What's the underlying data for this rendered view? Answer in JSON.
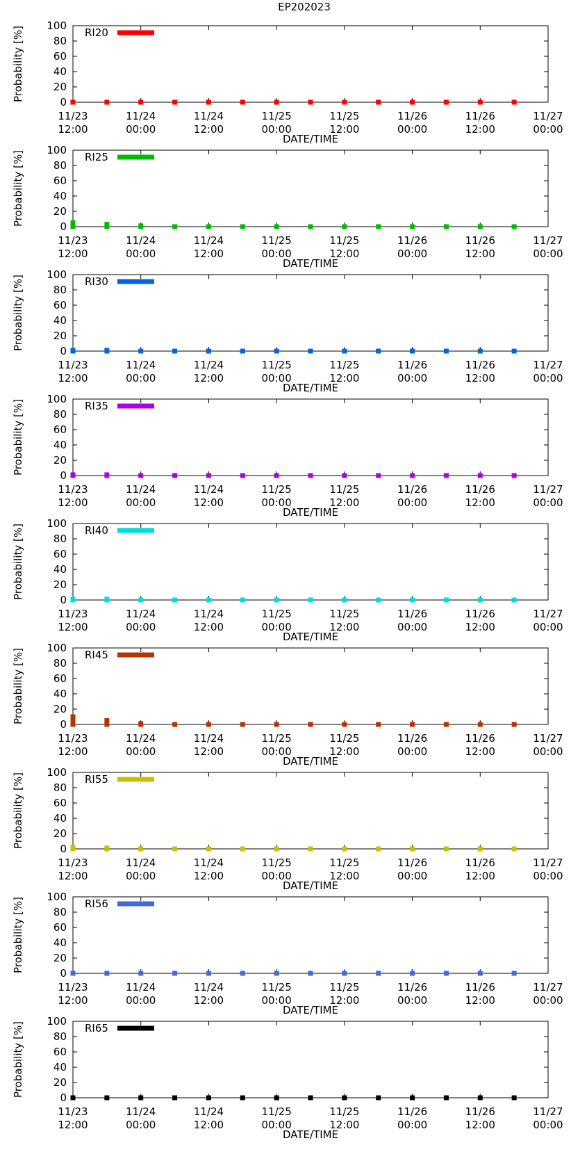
{
  "title": "EP202023",
  "chart_data": [
    {
      "type": "scatter",
      "title": "EP202023",
      "legend": "RI20",
      "color": "#ff0000",
      "xlabel": "DATE/TIME",
      "ylabel": "Probability [%]",
      "ylim": [
        0,
        100
      ],
      "yticks": [
        0,
        20,
        40,
        60,
        80,
        100
      ],
      "xticks": [
        [
          "11/23",
          "12:00"
        ],
        [
          "11/24",
          "00:00"
        ],
        [
          "11/24",
          "12:00"
        ],
        [
          "11/25",
          "00:00"
        ],
        [
          "11/25",
          "12:00"
        ],
        [
          "11/26",
          "00:00"
        ],
        [
          "11/26",
          "12:00"
        ],
        [
          "11/27",
          "00:00"
        ]
      ],
      "x_hours": [
        0,
        6,
        12,
        18,
        24,
        30,
        36,
        42,
        48,
        54,
        60,
        66,
        72,
        78
      ],
      "xlim_hours": [
        0,
        84
      ],
      "values": [
        0,
        0,
        0,
        0,
        0,
        0,
        0,
        0,
        0,
        0,
        0,
        0,
        0,
        0
      ]
    },
    {
      "type": "scatter",
      "legend": "RI25",
      "color": "#00bb00",
      "xlabel": "DATE/TIME",
      "ylabel": "Probability [%]",
      "ylim": [
        0,
        100
      ],
      "yticks": [
        0,
        20,
        40,
        60,
        80,
        100
      ],
      "xticks": [
        [
          "11/23",
          "12:00"
        ],
        [
          "11/24",
          "00:00"
        ],
        [
          "11/24",
          "12:00"
        ],
        [
          "11/25",
          "00:00"
        ],
        [
          "11/25",
          "12:00"
        ],
        [
          "11/26",
          "00:00"
        ],
        [
          "11/26",
          "12:00"
        ],
        [
          "11/27",
          "00:00"
        ]
      ],
      "x_hours": [
        0,
        6,
        12,
        18,
        24,
        30,
        36,
        42,
        48,
        54,
        60,
        66,
        72,
        78
      ],
      "xlim_hours": [
        0,
        84
      ],
      "values": [
        5,
        3,
        1,
        0,
        0,
        0,
        0,
        0,
        0,
        0,
        0,
        0,
        0,
        0
      ]
    },
    {
      "type": "scatter",
      "legend": "RI30",
      "color": "#0066dd",
      "xlabel": "DATE/TIME",
      "ylabel": "Probability [%]",
      "ylim": [
        0,
        100
      ],
      "yticks": [
        0,
        20,
        40,
        60,
        80,
        100
      ],
      "xticks": [
        [
          "11/23",
          "12:00"
        ],
        [
          "11/24",
          "00:00"
        ],
        [
          "11/24",
          "12:00"
        ],
        [
          "11/25",
          "00:00"
        ],
        [
          "11/25",
          "12:00"
        ],
        [
          "11/26",
          "00:00"
        ],
        [
          "11/26",
          "12:00"
        ],
        [
          "11/27",
          "00:00"
        ]
      ],
      "x_hours": [
        0,
        6,
        12,
        18,
        24,
        30,
        36,
        42,
        48,
        54,
        60,
        66,
        72,
        78
      ],
      "xlim_hours": [
        0,
        84
      ],
      "values": [
        1,
        1,
        0,
        0,
        0,
        0,
        0,
        0,
        0,
        0,
        0,
        0,
        0,
        0
      ]
    },
    {
      "type": "scatter",
      "legend": "RI35",
      "color": "#aa00ee",
      "xlabel": "DATE/TIME",
      "ylabel": "Probability [%]",
      "ylim": [
        0,
        100
      ],
      "yticks": [
        0,
        20,
        40,
        60,
        80,
        100
      ],
      "xticks": [
        [
          "11/23",
          "12:00"
        ],
        [
          "11/24",
          "00:00"
        ],
        [
          "11/24",
          "12:00"
        ],
        [
          "11/25",
          "00:00"
        ],
        [
          "11/25",
          "12:00"
        ],
        [
          "11/26",
          "00:00"
        ],
        [
          "11/26",
          "12:00"
        ],
        [
          "11/27",
          "00:00"
        ]
      ],
      "x_hours": [
        0,
        6,
        12,
        18,
        24,
        30,
        36,
        42,
        48,
        54,
        60,
        66,
        72,
        78
      ],
      "xlim_hours": [
        0,
        84
      ],
      "values": [
        1,
        1,
        0,
        0,
        0,
        0,
        0,
        0,
        0,
        0,
        0,
        0,
        0,
        0
      ]
    },
    {
      "type": "scatter",
      "legend": "RI40",
      "color": "#00dddd",
      "xlabel": "DATE/TIME",
      "ylabel": "Probability [%]",
      "ylim": [
        0,
        100
      ],
      "yticks": [
        0,
        20,
        40,
        60,
        80,
        100
      ],
      "xticks": [
        [
          "11/23",
          "12:00"
        ],
        [
          "11/24",
          "00:00"
        ],
        [
          "11/24",
          "12:00"
        ],
        [
          "11/25",
          "00:00"
        ],
        [
          "11/25",
          "12:00"
        ],
        [
          "11/26",
          "00:00"
        ],
        [
          "11/26",
          "12:00"
        ],
        [
          "11/27",
          "00:00"
        ]
      ],
      "x_hours": [
        0,
        6,
        12,
        18,
        24,
        30,
        36,
        42,
        48,
        54,
        60,
        66,
        72,
        78
      ],
      "xlim_hours": [
        0,
        84
      ],
      "values": [
        1,
        1,
        0,
        0,
        0,
        0,
        0,
        0,
        0,
        0,
        0,
        0,
        0,
        0
      ]
    },
    {
      "type": "scatter",
      "legend": "RI45",
      "color": "#b83300",
      "xlabel": "DATE/TIME",
      "ylabel": "Probability [%]",
      "ylim": [
        0,
        100
      ],
      "yticks": [
        0,
        20,
        40,
        60,
        80,
        100
      ],
      "xticks": [
        [
          "11/23",
          "12:00"
        ],
        [
          "11/24",
          "00:00"
        ],
        [
          "11/24",
          "12:00"
        ],
        [
          "11/25",
          "00:00"
        ],
        [
          "11/25",
          "12:00"
        ],
        [
          "11/26",
          "00:00"
        ],
        [
          "11/26",
          "12:00"
        ],
        [
          "11/27",
          "00:00"
        ]
      ],
      "x_hours": [
        0,
        6,
        12,
        18,
        24,
        30,
        36,
        42,
        48,
        54,
        60,
        66,
        72,
        78
      ],
      "xlim_hours": [
        0,
        84
      ],
      "values": [
        10,
        5,
        1,
        0,
        0,
        0,
        0,
        0,
        0,
        0,
        0,
        0,
        0,
        0
      ]
    },
    {
      "type": "scatter",
      "legend": "RI55",
      "color": "#c8c000",
      "xlabel": "DATE/TIME",
      "ylabel": "Probability [%]",
      "ylim": [
        0,
        100
      ],
      "yticks": [
        0,
        20,
        40,
        60,
        80,
        100
      ],
      "xticks": [
        [
          "11/23",
          "12:00"
        ],
        [
          "11/24",
          "00:00"
        ],
        [
          "11/24",
          "12:00"
        ],
        [
          "11/25",
          "00:00"
        ],
        [
          "11/25",
          "12:00"
        ],
        [
          "11/26",
          "00:00"
        ],
        [
          "11/26",
          "12:00"
        ],
        [
          "11/27",
          "00:00"
        ]
      ],
      "x_hours": [
        0,
        6,
        12,
        18,
        24,
        30,
        36,
        42,
        48,
        54,
        60,
        66,
        72,
        78
      ],
      "xlim_hours": [
        0,
        84
      ],
      "values": [
        2,
        1,
        0,
        0,
        0,
        0,
        0,
        0,
        0,
        0,
        0,
        0,
        0,
        0
      ]
    },
    {
      "type": "scatter",
      "legend": "RI56",
      "color": "#4169e1",
      "xlabel": "DATE/TIME",
      "ylabel": "Probability [%]",
      "ylim": [
        0,
        100
      ],
      "yticks": [
        0,
        20,
        40,
        60,
        80,
        100
      ],
      "xticks": [
        [
          "11/23",
          "12:00"
        ],
        [
          "11/24",
          "00:00"
        ],
        [
          "11/24",
          "12:00"
        ],
        [
          "11/25",
          "00:00"
        ],
        [
          "11/25",
          "12:00"
        ],
        [
          "11/26",
          "00:00"
        ],
        [
          "11/26",
          "12:00"
        ],
        [
          "11/27",
          "00:00"
        ]
      ],
      "x_hours": [
        0,
        6,
        12,
        18,
        24,
        30,
        36,
        42,
        48,
        54,
        60,
        66,
        72,
        78
      ],
      "xlim_hours": [
        0,
        84
      ],
      "values": [
        0,
        0,
        0,
        0,
        0,
        0,
        0,
        0,
        0,
        0,
        0,
        0,
        0,
        0
      ]
    },
    {
      "type": "scatter",
      "legend": "RI65",
      "color": "#000000",
      "xlabel": "DATE/TIME",
      "ylabel": "Probability [%]",
      "ylim": [
        0,
        100
      ],
      "yticks": [
        0,
        20,
        40,
        60,
        80,
        100
      ],
      "xticks": [
        [
          "11/23",
          "12:00"
        ],
        [
          "11/24",
          "00:00"
        ],
        [
          "11/24",
          "12:00"
        ],
        [
          "11/25",
          "00:00"
        ],
        [
          "11/25",
          "12:00"
        ],
        [
          "11/26",
          "00:00"
        ],
        [
          "11/26",
          "12:00"
        ],
        [
          "11/27",
          "00:00"
        ]
      ],
      "x_hours": [
        0,
        6,
        12,
        18,
        24,
        30,
        36,
        42,
        48,
        54,
        60,
        66,
        72,
        78
      ],
      "xlim_hours": [
        0,
        84
      ],
      "values": [
        0,
        0,
        0,
        0,
        0,
        0,
        0,
        0,
        0,
        0,
        0,
        0,
        0,
        0
      ]
    }
  ]
}
